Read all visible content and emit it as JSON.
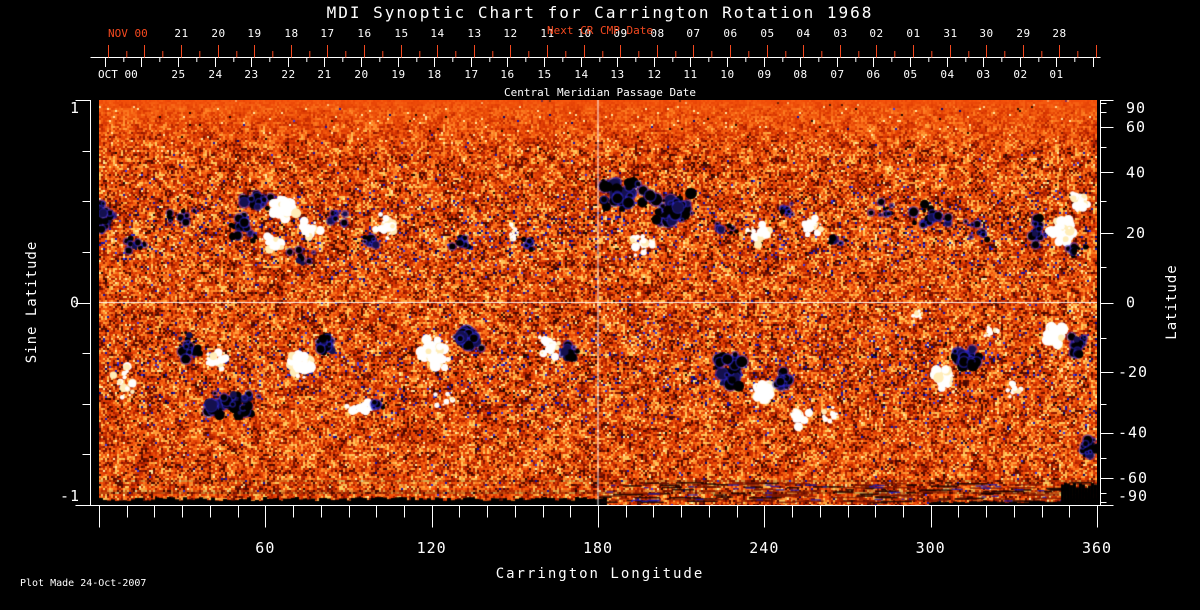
{
  "window": {
    "background": "#000000",
    "foreground": "#ffffff"
  },
  "annotation": "Plot Made 24-Oct-2007",
  "chart_data": {
    "type": "heatmap",
    "title": "MDI Synoptic Chart for Carrington Rotation 1968",
    "description": "Full-surface solar magnetic field synoptic map for Carrington rotation 1968 shown in a red/orange palette; white blobs are strong positive-polarity active regions, black/blue blobs are negative polarity. White reference grid lines at Carrington longitude 180 and sine latitude 0.",
    "x_axis": {
      "label": "Carrington Longitude",
      "range": [
        0,
        360
      ],
      "major_ticks": [
        60,
        120,
        180,
        240,
        300,
        360
      ],
      "minor_step": 10
    },
    "y_axis_left": {
      "label": "Sine Latitude",
      "range": [
        -1,
        1
      ],
      "major_ticks": [
        1,
        0,
        -1
      ],
      "minor_step": 0.25
    },
    "y_axis_right": {
      "label": "Latitude",
      "major_ticks": [
        90,
        60,
        40,
        20,
        0,
        -20,
        -40,
        -60,
        -90
      ],
      "minor_ticks": [
        80,
        70,
        50,
        30,
        10,
        -10,
        -30,
        -50,
        -70,
        -80
      ]
    },
    "cmp_axis": {
      "label": "Central Meridian Passage Date",
      "month": "OCT 00",
      "days": [
        "25",
        "24",
        "23",
        "22",
        "21",
        "20",
        "19",
        "18",
        "17",
        "16",
        "15",
        "14",
        "13",
        "12",
        "11",
        "10",
        "09",
        "08",
        "07",
        "06",
        "05",
        "04",
        "03",
        "02",
        "01"
      ],
      "color": "#ffffff"
    },
    "next_cr_axis": {
      "label": "Next CR CMP Date",
      "month": "NOV 00",
      "days": [
        "21",
        "20",
        "19",
        "18",
        "17",
        "16",
        "15",
        "14",
        "13",
        "12",
        "11",
        "10",
        "09",
        "08",
        "07",
        "06",
        "05",
        "04",
        "03",
        "02",
        "01",
        "31",
        "30",
        "29",
        "28"
      ],
      "color": "#f5491f"
    },
    "grid": {
      "longitude": 180,
      "sine_latitude": 0,
      "color": "#ffffff"
    },
    "colormap": {
      "stops": [
        "#4a0800",
        "#a81e00",
        "#d93702",
        "#f2560c",
        "#ff8426",
        "#ffc95e"
      ],
      "positive_color": "#ffffff",
      "negative_color": "#000000",
      "negative_fringe": "#2d28c8",
      "sparkle_color": "#ffe9a0"
    },
    "active_regions": {
      "fields": [
        "lon",
        "sine_lat",
        "polarity",
        "size",
        "spread_lon",
        "spread_slat"
      ],
      "rows": [
        [
          3,
          0.42,
          -1,
          "m",
          4,
          0.07
        ],
        [
          14,
          0.3,
          -1,
          "s",
          6,
          0.05
        ],
        [
          30,
          0.44,
          -1,
          "s",
          8,
          0.05
        ],
        [
          52,
          0.36,
          -1,
          "m",
          6,
          0.07
        ],
        [
          57,
          0.5,
          -1,
          "m",
          5,
          0.05
        ],
        [
          67,
          0.47,
          1,
          "l",
          4,
          0.05
        ],
        [
          63,
          0.3,
          1,
          "m",
          4,
          0.05
        ],
        [
          76,
          0.35,
          1,
          "m",
          4,
          0.05
        ],
        [
          72,
          0.22,
          -1,
          "s",
          6,
          0.04
        ],
        [
          87,
          0.42,
          -1,
          "s",
          4,
          0.04
        ],
        [
          104,
          0.38,
          1,
          "m",
          4,
          0.05
        ],
        [
          98,
          0.31,
          -1,
          "s",
          3,
          0.04
        ],
        [
          131,
          0.3,
          -1,
          "s",
          3,
          0.04
        ],
        [
          150,
          0.34,
          1,
          "s",
          3,
          0.04
        ],
        [
          155,
          0.29,
          -1,
          "s",
          2,
          0.03
        ],
        [
          188,
          0.53,
          -1,
          "l",
          8,
          0.08
        ],
        [
          207,
          0.45,
          -1,
          "l",
          8,
          0.08
        ],
        [
          196,
          0.29,
          1,
          "m",
          4,
          0.05
        ],
        [
          225,
          0.36,
          -1,
          "s",
          6,
          0.05
        ],
        [
          238,
          0.34,
          1,
          "m",
          4,
          0.05
        ],
        [
          248,
          0.45,
          -1,
          "s",
          5,
          0.05
        ],
        [
          258,
          0.37,
          1,
          "m",
          4,
          0.05
        ],
        [
          266,
          0.3,
          -1,
          "s",
          4,
          0.04
        ],
        [
          283,
          0.46,
          -1,
          "s",
          5,
          0.05
        ],
        [
          300,
          0.43,
          -1,
          "m",
          6,
          0.06
        ],
        [
          318,
          0.36,
          -1,
          "s",
          5,
          0.05
        ],
        [
          338,
          0.36,
          -1,
          "m",
          3,
          0.06
        ],
        [
          347,
          0.36,
          1,
          "l",
          4,
          0.06
        ],
        [
          354,
          0.5,
          1,
          "m",
          3,
          0.05
        ],
        [
          352,
          0.26,
          -1,
          "s",
          4,
          0.04
        ],
        [
          10,
          -0.4,
          1,
          "m",
          5,
          0.08
        ],
        [
          33,
          -0.22,
          -1,
          "m",
          5,
          0.06
        ],
        [
          42,
          -0.28,
          1,
          "m",
          4,
          0.05
        ],
        [
          48,
          -0.5,
          -1,
          "l",
          11,
          0.06
        ],
        [
          73,
          -0.3,
          1,
          "l",
          4,
          0.06
        ],
        [
          81,
          -0.2,
          -1,
          "m",
          4,
          0.05
        ],
        [
          95,
          -0.52,
          1,
          "m",
          5,
          0.03
        ],
        [
          100,
          -0.51,
          -1,
          "s",
          2,
          0.03
        ],
        [
          121,
          -0.25,
          1,
          "l",
          5,
          0.08
        ],
        [
          125,
          -0.47,
          1,
          "s",
          4,
          0.04
        ],
        [
          133,
          -0.18,
          -1,
          "l",
          4,
          0.06
        ],
        [
          163,
          -0.22,
          1,
          "m",
          4,
          0.05
        ],
        [
          170,
          -0.26,
          -1,
          "m",
          3,
          0.05
        ],
        [
          228,
          -0.33,
          -1,
          "l",
          5,
          0.08
        ],
        [
          240,
          -0.44,
          1,
          "l",
          4,
          0.06
        ],
        [
          247,
          -0.38,
          -1,
          "m",
          3,
          0.05
        ],
        [
          295,
          -0.07,
          1,
          "s",
          4,
          0.03
        ],
        [
          252,
          -0.57,
          1,
          "m",
          4,
          0.04
        ],
        [
          264,
          -0.55,
          1,
          "s",
          3,
          0.03
        ],
        [
          305,
          -0.37,
          1,
          "l",
          4,
          0.06
        ],
        [
          313,
          -0.27,
          -1,
          "l",
          4,
          0.05
        ],
        [
          322,
          -0.14,
          1,
          "s",
          3,
          0.04
        ],
        [
          330,
          -0.44,
          1,
          "s",
          3,
          0.04
        ],
        [
          345,
          -0.16,
          1,
          "l",
          4,
          0.05
        ],
        [
          353,
          -0.22,
          -1,
          "m",
          3,
          0.05
        ],
        [
          357,
          -0.72,
          -1,
          "m",
          3,
          0.04
        ]
      ]
    },
    "features": {
      "bottom_black_strip_lon": [
        0,
        183
      ],
      "bottom_right_patch_lon": [
        347,
        360
      ],
      "bottom_stripes_lon": [
        180,
        360
      ]
    }
  }
}
